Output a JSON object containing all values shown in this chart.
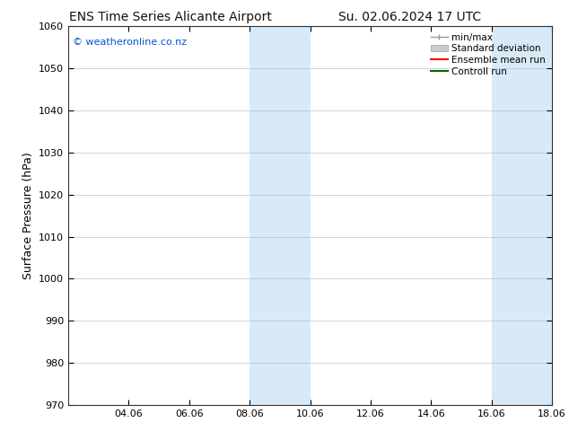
{
  "title_left": "ENS Time Series Alicante Airport",
  "title_right": "Su. 02.06.2024 17 UTC",
  "ylabel": "Surface Pressure (hPa)",
  "ylim": [
    970,
    1060
  ],
  "yticks": [
    970,
    980,
    990,
    1000,
    1010,
    1020,
    1030,
    1040,
    1050,
    1060
  ],
  "xtick_labels": [
    "04.06",
    "06.06",
    "08.06",
    "10.06",
    "12.06",
    "14.06",
    "16.06",
    "18.06"
  ],
  "xtick_positions": [
    2,
    4,
    6,
    8,
    10,
    12,
    14,
    16
  ],
  "xlim": [
    0,
    16
  ],
  "watermark": "© weatheronline.co.nz",
  "watermark_color": "#0055cc",
  "background_color": "#ffffff",
  "plot_bg_color": "#ffffff",
  "shaded_regions": [
    {
      "x_start": 6.0,
      "x_end": 8.0,
      "color": "#d8eaf8"
    },
    {
      "x_start": 14.0,
      "x_end": 16.0,
      "color": "#d8eaf8"
    }
  ],
  "legend_labels": [
    "min/max",
    "Standard deviation",
    "Ensemble mean run",
    "Controll run"
  ],
  "legend_colors": [
    "#999999",
    "#cccccc",
    "#ff0000",
    "#006600"
  ],
  "title_fontsize": 10,
  "tick_fontsize": 8,
  "ylabel_fontsize": 9,
  "watermark_fontsize": 8,
  "legend_fontsize": 7.5,
  "grid_color": "#aaaaaa",
  "spine_color": "#333333"
}
